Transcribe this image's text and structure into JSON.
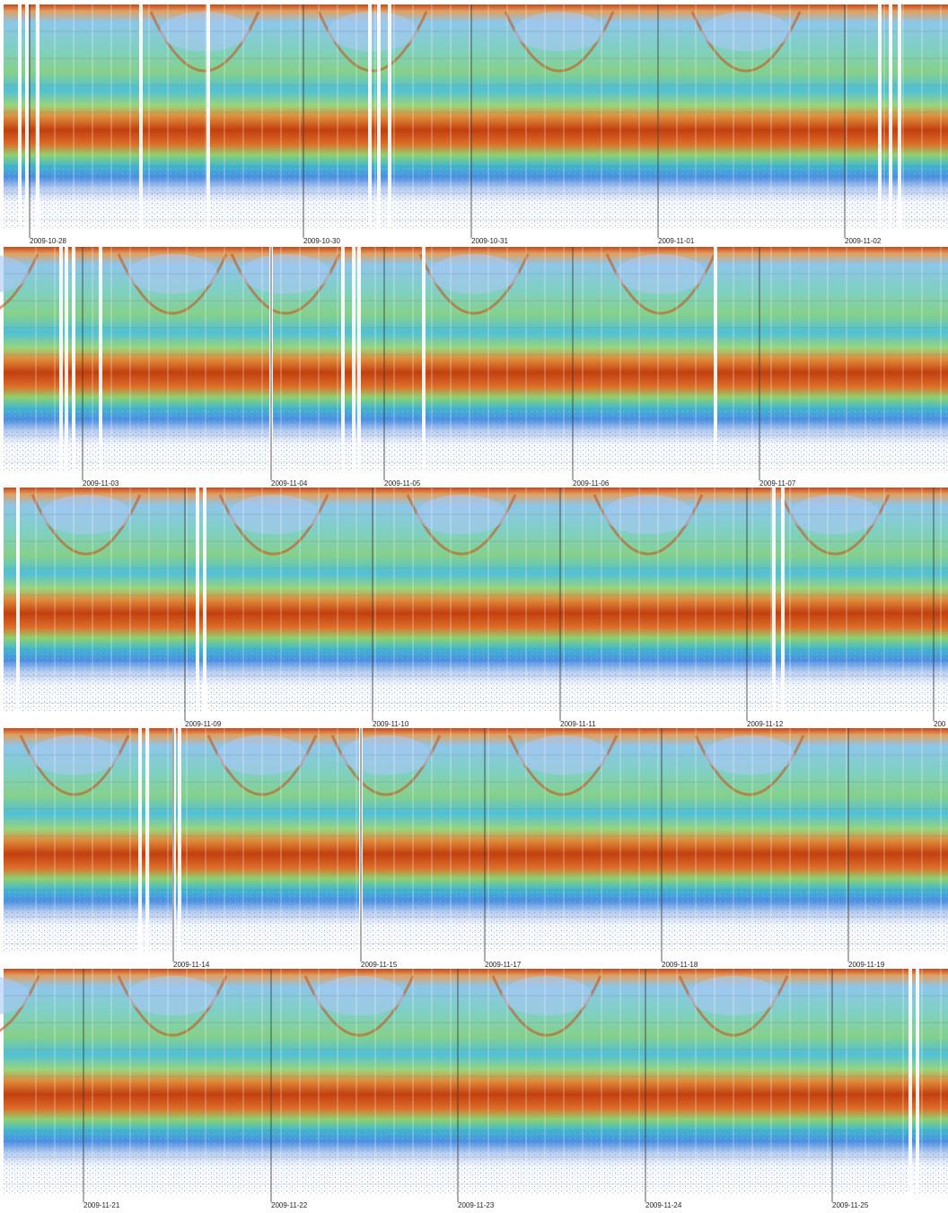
{
  "panels": [
    {
      "dates": [
        "2009-10-28",
        "2009-10-30",
        "2009-10-31",
        "2009-11-01",
        "2009-11-02"
      ]
    },
    {
      "dates": [
        "2009-11-03",
        "2009-11-04",
        "2009-11-05",
        "2009-11-06",
        "2009-11-07"
      ]
    },
    {
      "dates": [
        "2009-11-09",
        "2009-11-10",
        "2009-11-11",
        "2009-11-12",
        "200"
      ]
    },
    {
      "dates": [
        "2009-11-14",
        "2009-11-15",
        "2009-11-17",
        "2009-11-18",
        "2009-11-19"
      ]
    },
    {
      "dates": [
        "2009-11-21",
        "2009-11-22",
        "2009-11-23",
        "2009-11-24",
        "2009-11-25"
      ]
    }
  ]
}
